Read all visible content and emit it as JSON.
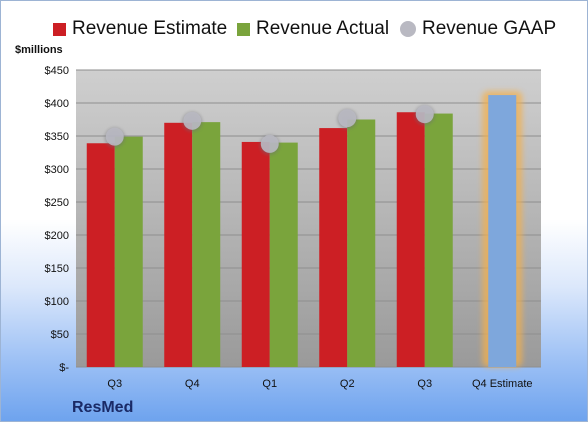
{
  "legend": [
    {
      "label": "Revenue Estimate",
      "color": "#cc1f24",
      "shape": "square"
    },
    {
      "label": "Revenue Actual",
      "color": "#7aa43c",
      "shape": "square"
    },
    {
      "label": "Revenue GAAP",
      "color": "#b9b9c2",
      "shape": "circle"
    }
  ],
  "unit_label": "$millions",
  "brand": "ResMed",
  "chart_data": {
    "type": "bar",
    "categories": [
      "Q3",
      "Q4",
      "Q1",
      "Q2",
      "Q3",
      "Q4 Estimate"
    ],
    "series": [
      {
        "name": "Revenue Estimate",
        "values": [
          339,
          370,
          341,
          362,
          386,
          null
        ],
        "color": "#cc1f24"
      },
      {
        "name": "Revenue Actual",
        "values": [
          349,
          371,
          340,
          375,
          384,
          null
        ],
        "color": "#7aa43c"
      },
      {
        "name": "Revenue GAAP",
        "values": [
          349,
          373,
          338,
          377,
          383,
          null
        ],
        "color": "#b9b9c2",
        "marker": "circle"
      },
      {
        "name": "Q4 Estimate",
        "values": [
          null,
          null,
          null,
          null,
          null,
          412
        ],
        "color": "#7ea7dc",
        "highlight": "#f3b04e"
      }
    ],
    "yticks": [
      "$-",
      "$50",
      "$100",
      "$150",
      "$200",
      "$250",
      "$300",
      "$350",
      "$400",
      "$450"
    ],
    "ylim": [
      0,
      450
    ],
    "grid": true
  }
}
